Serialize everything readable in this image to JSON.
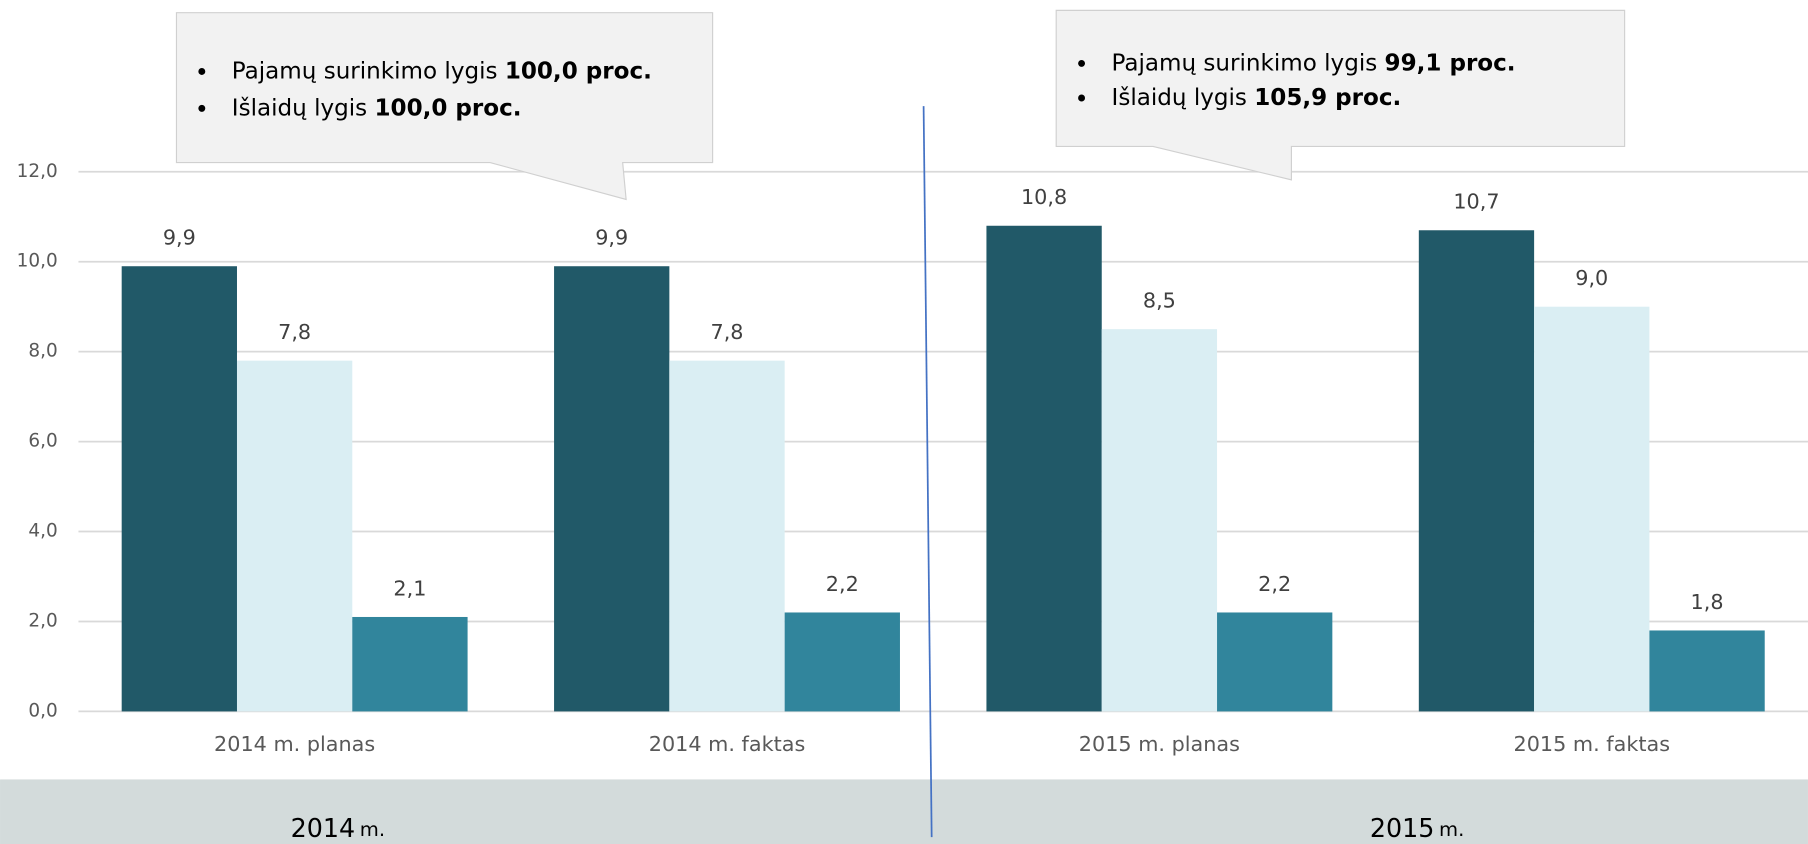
{
  "chart_data": {
    "type": "bar",
    "categories": [
      "2014 m. planas",
      "2014 m. faktas",
      "2015 m. planas",
      "2015 m. faktas"
    ],
    "series": [
      {
        "color": "#215968",
        "values": [
          9.9,
          9.9,
          10.8,
          10.7
        ],
        "value_labels": [
          "9,9",
          "9,9",
          "10,8",
          "10,7"
        ]
      },
      {
        "color": "#daeef3",
        "values": [
          7.8,
          7.8,
          8.5,
          9.0
        ],
        "value_labels": [
          "7,8",
          "7,8",
          "8,5",
          "9,0"
        ]
      },
      {
        "color": "#31859c",
        "values": [
          2.1,
          2.2,
          2.2,
          1.8
        ],
        "value_labels": [
          "2,1",
          "2,2",
          "2,2",
          "1,8"
        ]
      }
    ],
    "ylim": [
      0,
      12
    ],
    "yticks": [
      {
        "value": 0,
        "label": "0,0"
      },
      {
        "value": 2,
        "label": "2,0"
      },
      {
        "value": 4,
        "label": "4,0"
      },
      {
        "value": 6,
        "label": "6,0"
      },
      {
        "value": 8,
        "label": "8,0"
      },
      {
        "value": 10,
        "label": "10,0"
      },
      {
        "value": 12,
        "label": "12,0"
      }
    ],
    "grid": true,
    "annotations": [
      {
        "items": [
          {
            "text": "Pajamų surinkimo lygis ",
            "bold": "100,0 proc."
          },
          {
            "text": "Išlaidų lygis ",
            "bold": "100,0 proc."
          }
        ]
      },
      {
        "items": [
          {
            "text": "Pajamų surinkimo lygis ",
            "bold": "99,1 proc."
          },
          {
            "text": "Išlaidų lygis ",
            "bold": "105,9 proc."
          }
        ]
      }
    ],
    "periods": [
      {
        "year": "2014",
        "suffix": "m."
      },
      {
        "year": "2015",
        "suffix": "m."
      }
    ]
  }
}
